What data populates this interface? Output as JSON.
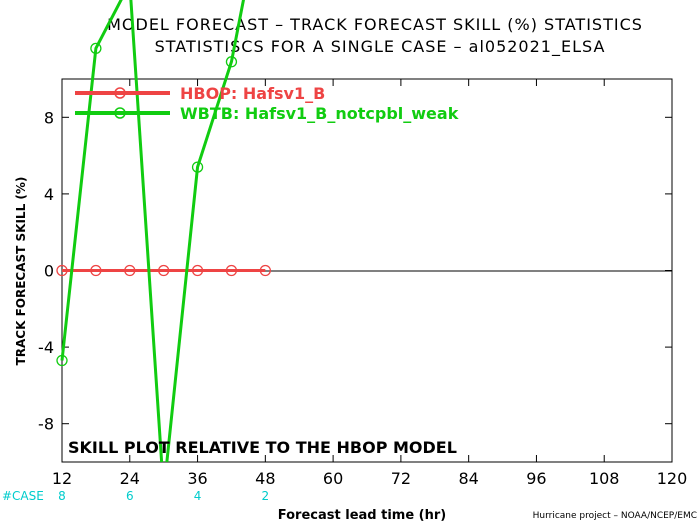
{
  "title": {
    "line1": "MODEL FORECAST – TRACK FORECAST SKILL (%) STATISTICS",
    "line2": "STATISTISCS FOR A SINGLE CASE – al052021_ELSA"
  },
  "colors": {
    "hbop": "#ee4444",
    "wbtb": "#11cc11",
    "case_text": "#00cccc",
    "zero_line": "#000000"
  },
  "chart_data": {
    "type": "line",
    "xlabel": "Forecast lead time (hr)",
    "ylabel": "TRACK FORECAST SKILL (%)",
    "xlim": [
      12,
      120
    ],
    "ylim": [
      -10,
      10
    ],
    "xticks": [
      12,
      24,
      36,
      48,
      60,
      72,
      84,
      96,
      108,
      120
    ],
    "yticks": [
      -8,
      -4,
      0,
      4,
      8
    ],
    "grid": false,
    "legend_position": "top-left",
    "series": [
      {
        "name": "HBOP: Hafsv1_B",
        "color": "#ee4444",
        "x": [
          12,
          18,
          24,
          30,
          36,
          42,
          48
        ],
        "y": [
          0,
          0,
          0,
          0,
          0,
          0,
          0
        ]
      },
      {
        "name": "WBTB: Hafsv1_B_notcpbl_weak",
        "color": "#11cc11",
        "x": [
          12,
          18,
          24,
          30,
          36,
          42,
          48
        ],
        "y": [
          -4.7,
          11.6,
          15,
          -11.6,
          5.4,
          10.9,
          20
        ]
      }
    ],
    "case_label": "#CASE",
    "case_counts": [
      {
        "x": 12,
        "count": "8"
      },
      {
        "x": 24,
        "count": "6"
      },
      {
        "x": 36,
        "count": "4"
      },
      {
        "x": 48,
        "count": "2"
      }
    ],
    "annotation": "SKILL PLOT RELATIVE TO THE HBOP MODEL"
  },
  "footer": "Hurricane project – NOAA/NCEP/EMC"
}
